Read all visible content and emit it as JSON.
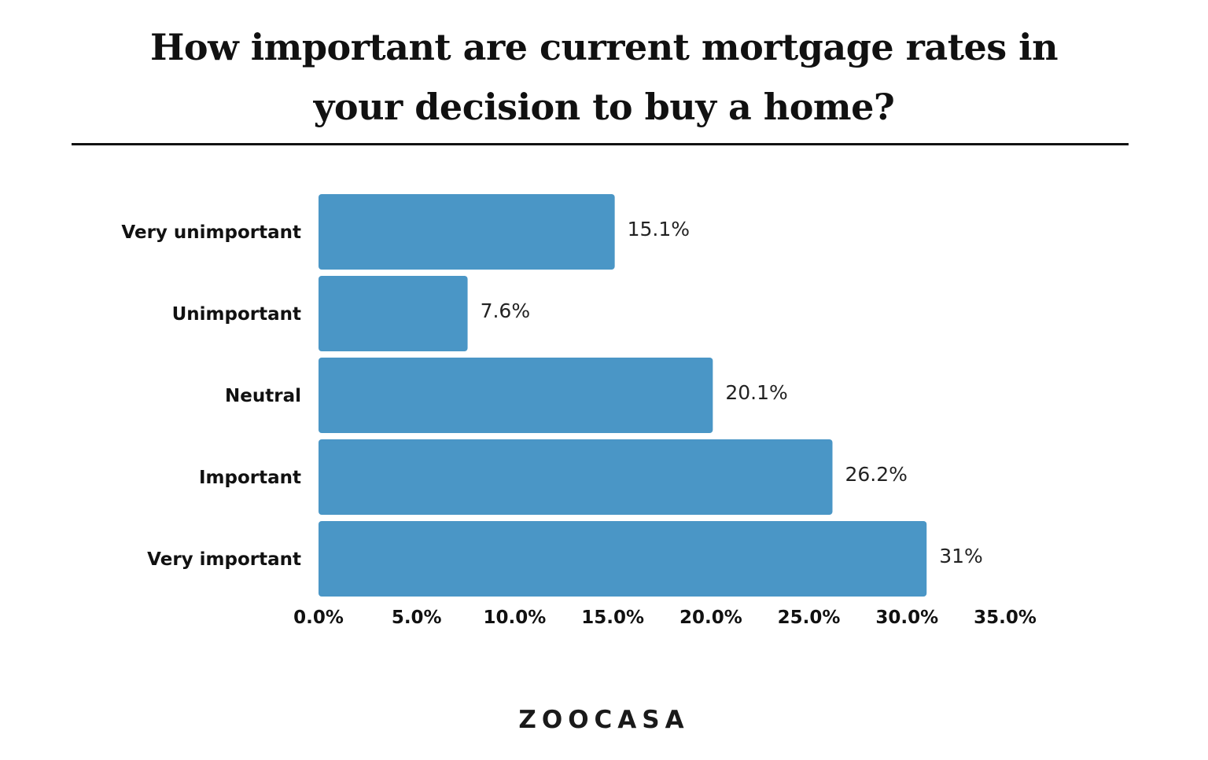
{
  "title_lines": [
    "How important are current mortgage rates in",
    "your decision to buy a home?"
  ],
  "logo": "ZOOCASA",
  "chart_data": {
    "type": "bar",
    "orientation": "horizontal",
    "categories": [
      "Very unimportant",
      "Unimportant",
      "Neutral",
      "Important",
      "Very important"
    ],
    "values": [
      15.1,
      7.6,
      20.1,
      26.2,
      31
    ],
    "value_labels": [
      "15.1%",
      "7.6%",
      "20.1%",
      "26.2%",
      "31%"
    ],
    "xlim": [
      0,
      35
    ],
    "ticks": [
      0,
      5,
      10,
      15,
      20,
      25,
      30,
      35
    ],
    "tick_labels": [
      "0.0%",
      "5.0%",
      "10.0%",
      "15.0%",
      "20.0%",
      "25.0%",
      "30.0%",
      "35.0%"
    ],
    "bar_color": "#4a96c6",
    "grid": false,
    "legend": "none"
  }
}
